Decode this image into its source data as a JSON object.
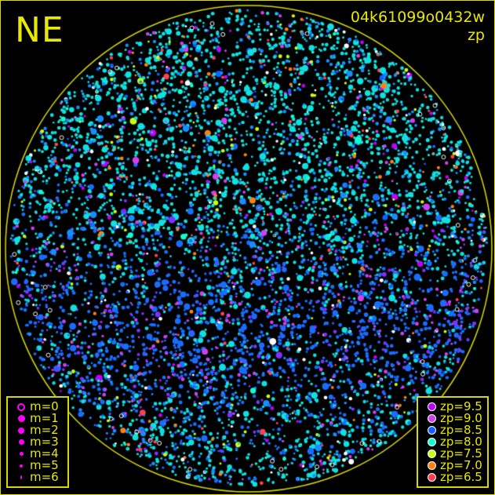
{
  "direction_label": "NE",
  "title": "04k61099o0432w",
  "subtitle": "zp",
  "colors": {
    "frame": "#d8d800",
    "horizon_circle": "#d8d800",
    "text": "#e8e800"
  },
  "magnitude_legend": [
    {
      "label": "m=0",
      "symbol": "open-circle"
    },
    {
      "label": "m=1",
      "symbol": "dot"
    },
    {
      "label": "m=2",
      "symbol": "dot"
    },
    {
      "label": "m=3",
      "symbol": "dot"
    },
    {
      "label": "m=4",
      "symbol": "dot"
    },
    {
      "label": "m=5",
      "symbol": "dot"
    },
    {
      "label": "m=6",
      "symbol": "dot"
    }
  ],
  "magnitude_color": "#ff00ff",
  "zp_legend": [
    {
      "label": "zp=9.5",
      "color": "#c000ff"
    },
    {
      "label": "zp=9.0",
      "color": "#d040f0"
    },
    {
      "label": "zp=8.5",
      "color": "#1060ff"
    },
    {
      "label": "zp=8.0",
      "color": "#10ffd0"
    },
    {
      "label": "zp=7.5",
      "color": "#c8ff10"
    },
    {
      "label": "zp=7.0",
      "color": "#ff8010"
    },
    {
      "label": "zp=6.5",
      "color": "#ff4050"
    }
  ]
}
